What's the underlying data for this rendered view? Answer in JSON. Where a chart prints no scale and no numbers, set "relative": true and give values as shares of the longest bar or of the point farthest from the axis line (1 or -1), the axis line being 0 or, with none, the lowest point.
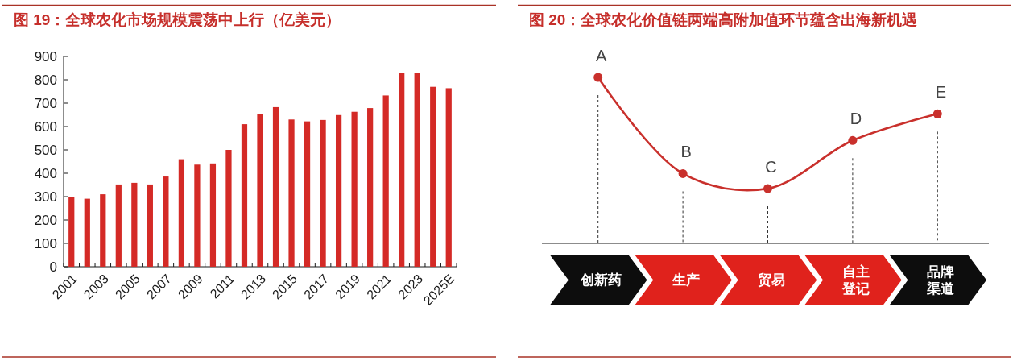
{
  "chart_data": [
    {
      "type": "bar",
      "title": "图 19：全球农化市场规模震荡中上行（亿美元）",
      "categories": [
        "2001",
        null,
        "2003",
        null,
        "2005",
        null,
        "2007",
        null,
        "2009",
        null,
        "2011",
        null,
        "2013",
        null,
        "2015",
        null,
        "2017",
        null,
        "2019",
        null,
        "2021",
        null,
        "2023",
        null,
        "2025E"
      ],
      "values": [
        297,
        291,
        310,
        352,
        359,
        352,
        386,
        460,
        437,
        442,
        500,
        610,
        652,
        683,
        630,
        622,
        628,
        649,
        663,
        679,
        733,
        829,
        829,
        770,
        764
      ],
      "color": "#d42a26",
      "ylim": [
        0,
        900
      ],
      "yticks": [
        0,
        100,
        200,
        300,
        400,
        500,
        600,
        700,
        800,
        900
      ]
    },
    {
      "type": "line",
      "title": "图 20：全球农化价值链两端高附加值环节蕴含出海新机遇",
      "categories": [
        "创新药",
        "生产",
        "贸易",
        "自主登记",
        "品牌渠道"
      ],
      "relative": true,
      "marker": "circle",
      "series": [
        {
          "color": "#c9302c",
          "values": [
            1,
            0.42,
            0.33,
            0.62,
            0.78
          ]
        }
      ],
      "ref_lines": [
        {
          "axis": "x",
          "value": "创新药",
          "color": "#333333",
          "line_style": "dashed"
        },
        {
          "axis": "x",
          "value": "生产",
          "color": "#333333",
          "line_style": "dashed"
        },
        {
          "axis": "x",
          "value": "贸易",
          "color": "#333333",
          "line_style": "dashed"
        },
        {
          "axis": "x",
          "value": "自主登记",
          "color": "#333333",
          "line_style": "dashed"
        },
        {
          "axis": "x",
          "value": "品牌渠道",
          "color": "#333333",
          "line_style": "dashed"
        }
      ],
      "annotations": [
        {
          "text": "A",
          "x": "创新药",
          "y": 1
        },
        {
          "text": "B",
          "x": "生产",
          "y": 0.42
        },
        {
          "text": "C",
          "x": "贸易",
          "y": 0.33
        },
        {
          "text": "D",
          "x": "自主登记",
          "y": 0.62
        },
        {
          "text": "E",
          "x": "品牌渠道",
          "y": 0.78
        }
      ]
    }
  ]
}
